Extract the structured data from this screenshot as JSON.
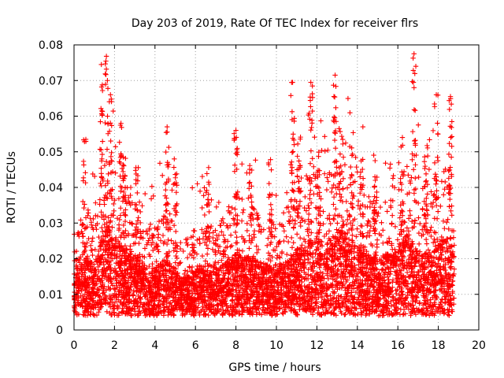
{
  "chart_data": {
    "type": "scatter",
    "title": "Day 203 of 2019, Rate Of TEC Index for receiver flrs",
    "xlabel": "GPS time / hours",
    "ylabel": "ROTI / TECUs",
    "xlim": [
      0,
      20
    ],
    "ylim": [
      0,
      0.08
    ],
    "xticks": [
      0,
      2,
      4,
      6,
      8,
      10,
      12,
      14,
      16,
      18,
      20
    ],
    "yticks": [
      0,
      0.01,
      0.02,
      0.03,
      0.04,
      0.05,
      0.06,
      0.07,
      0.08
    ],
    "xtick_labels": [
      "0",
      "2",
      "4",
      "6",
      "8",
      "10",
      "12",
      "14",
      "16",
      "18",
      "20"
    ],
    "ytick_labels": [
      "0",
      "0.01",
      "0.02",
      "0.03",
      "0.04",
      "0.05",
      "0.06",
      "0.07",
      "0.08"
    ],
    "grid": true,
    "marker": "+",
    "color": "#ff0000",
    "x_data_range": [
      0,
      18.8
    ],
    "series": [
      {
        "name": "ROTI",
        "description": "dense cloud of ROTI samples; baseline mostly 0.005–0.02 TECU, spikes up to ~0.077",
        "peaks": [
          {
            "x": 1.35,
            "y": 0.0745
          },
          {
            "x": 1.6,
            "y": 0.0768
          },
          {
            "x": 1.65,
            "y": 0.07
          },
          {
            "x": 1.8,
            "y": 0.066
          },
          {
            "x": 4.6,
            "y": 0.057
          },
          {
            "x": 8.0,
            "y": 0.056
          },
          {
            "x": 10.8,
            "y": 0.0695
          },
          {
            "x": 11.7,
            "y": 0.0695
          },
          {
            "x": 12.9,
            "y": 0.0715
          },
          {
            "x": 13.1,
            "y": 0.0565
          },
          {
            "x": 16.8,
            "y": 0.0775
          },
          {
            "x": 16.8,
            "y": 0.068
          },
          {
            "x": 17.9,
            "y": 0.066
          },
          {
            "x": 18.6,
            "y": 0.0655
          }
        ]
      }
    ]
  }
}
